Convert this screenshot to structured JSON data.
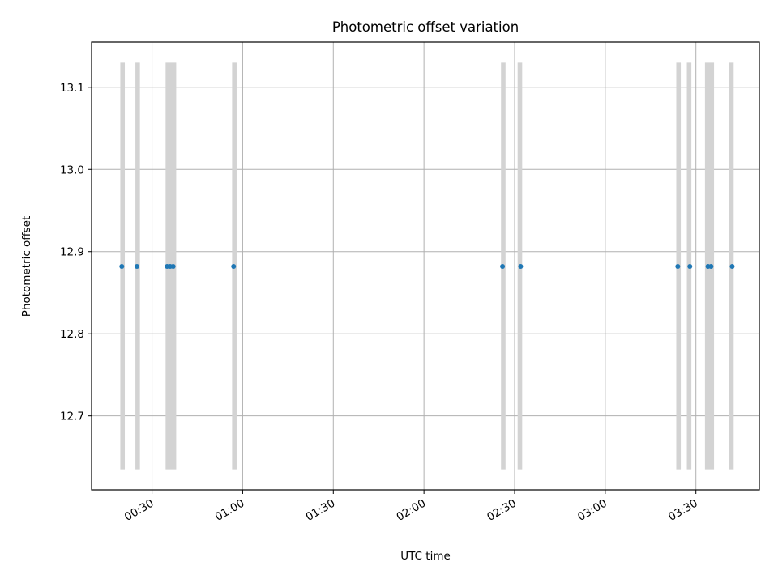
{
  "chart_data": {
    "type": "scatter",
    "title": "Photometric offset variation",
    "xlabel": "UTC time",
    "ylabel": "Photometric offset",
    "x_ticks": [
      "00:30",
      "01:00",
      "01:30",
      "02:00",
      "02:30",
      "03:00",
      "03:30"
    ],
    "y_ticks": [
      "12.7",
      "12.8",
      "12.9",
      "13.0",
      "13.1"
    ],
    "xlim": [
      "00:10",
      "03:51"
    ],
    "ylim": [
      12.61,
      13.155
    ],
    "grid": true,
    "point_color": "#1f77b4",
    "band_color": "#d3d3d3",
    "band_range": [
      12.635,
      13.13
    ],
    "points": [
      {
        "x": "00:20",
        "y": 12.882
      },
      {
        "x": "00:25",
        "y": 12.882
      },
      {
        "x": "00:35",
        "y": 12.882
      },
      {
        "x": "00:36",
        "y": 12.882
      },
      {
        "x": "00:37",
        "y": 12.882
      },
      {
        "x": "00:57",
        "y": 12.882
      },
      {
        "x": "02:26",
        "y": 12.882
      },
      {
        "x": "02:32",
        "y": 12.882
      },
      {
        "x": "03:24",
        "y": 12.882
      },
      {
        "x": "03:28",
        "y": 12.882
      },
      {
        "x": "03:34",
        "y": 12.882
      },
      {
        "x": "03:35",
        "y": 12.882
      },
      {
        "x": "03:42",
        "y": 12.882
      }
    ],
    "bands": [
      {
        "start": "00:19.5",
        "end": "00:21"
      },
      {
        "start": "00:24.5",
        "end": "00:26"
      },
      {
        "start": "00:34.5",
        "end": "00:38"
      },
      {
        "start": "00:56.5",
        "end": "00:58"
      },
      {
        "start": "02:25.5",
        "end": "02:27"
      },
      {
        "start": "02:31",
        "end": "02:32.5"
      },
      {
        "start": "03:23.5",
        "end": "03:25"
      },
      {
        "start": "03:27",
        "end": "03:28.5"
      },
      {
        "start": "03:33",
        "end": "03:36"
      },
      {
        "start": "03:41",
        "end": "03:42.5"
      }
    ]
  }
}
